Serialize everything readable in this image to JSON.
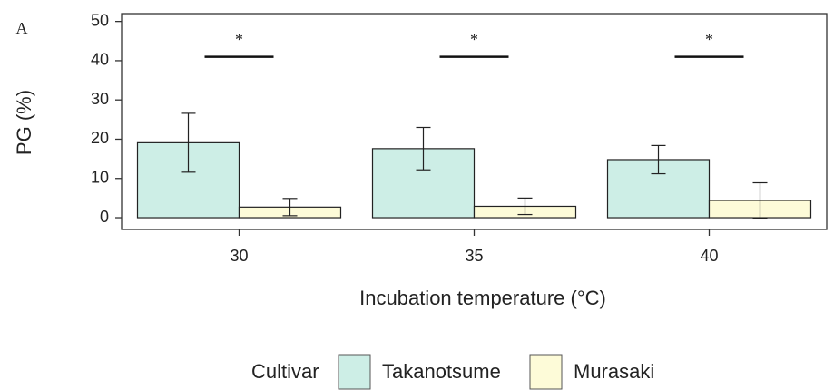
{
  "chart_data": {
    "type": "bar",
    "panel_label": "A",
    "x_label": "Incubation temperature (°C)",
    "y_label": "PG (%)",
    "legend_title": "Cultivar",
    "categories": [
      "30",
      "35",
      "40"
    ],
    "series": [
      {
        "name": "Takanotsume",
        "color": "#cdeee6",
        "values": [
          19.1,
          17.6,
          14.8
        ],
        "errors": [
          7.5,
          5.4,
          3.6
        ]
      },
      {
        "name": "Murasaki",
        "color": "#fdfbd8",
        "values": [
          2.7,
          2.9,
          4.4
        ],
        "errors": [
          2.2,
          2.1,
          4.5
        ]
      }
    ],
    "annotations": [
      {
        "text": "*",
        "y": 41
      },
      {
        "text": "*",
        "y": 41
      },
      {
        "text": "*",
        "y": 41
      }
    ],
    "ylim": [
      -3,
      52
    ],
    "yticks": [
      0,
      10,
      20,
      30,
      40,
      50
    ]
  }
}
